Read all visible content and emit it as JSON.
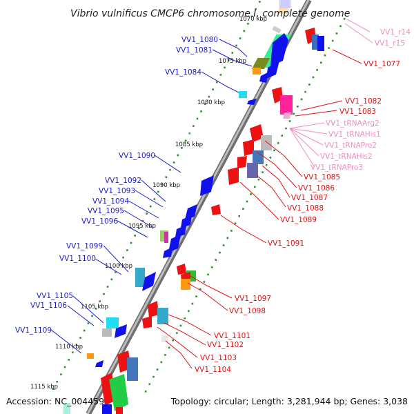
{
  "title": "Vibrio vulnificus CMCP6 chromosome I, complete genome",
  "footer": {
    "accession": "Accession: NC_004459",
    "topology": "Topology: circular; Length: 3,281,944 bp; Genes: 3,038"
  },
  "colors": {
    "forward_label": "#1a1acc",
    "reverse_label": "#dd1111",
    "rna_label": "#f08cc0",
    "backbone": "#8a8a8a",
    "tick": "#2f8f2f"
  },
  "scale": {
    "kbp_labels": [
      "1070 kbp",
      "1075 kbp",
      "1080 kbp",
      "1085 kbp",
      "1090 kbp",
      "1095 kbp",
      "1100 kbp",
      "1105 kbp",
      "1110 kbp",
      "1115 kbp"
    ]
  },
  "forward_genes": [
    {
      "name": "VV1_1080",
      "label": "VV1_1080",
      "icon": "gene-arrow"
    },
    {
      "name": "VV1_1081",
      "label": "VV1_1081",
      "icon": "gene-arrow"
    },
    {
      "name": "VV1_1084",
      "label": "VV1_1084",
      "icon": "gene-arrow"
    },
    {
      "name": "VV1_1090",
      "label": "VV1_1090",
      "icon": "gene-arrow"
    },
    {
      "name": "VV1_1092",
      "label": "VV1_1092",
      "icon": "gene-arrow"
    },
    {
      "name": "VV1_1093",
      "label": "VV1_1093",
      "icon": "gene-arrow"
    },
    {
      "name": "VV1_1094",
      "label": "VV1_1094",
      "icon": "gene-arrow"
    },
    {
      "name": "VV1_1095",
      "label": "VV1_1095",
      "icon": "gene-arrow"
    },
    {
      "name": "VV1_1096",
      "label": "VV1_1096",
      "icon": "gene-arrow"
    },
    {
      "name": "VV1_1099",
      "label": "VV1_1099",
      "icon": "gene-arrow"
    },
    {
      "name": "VV1_1100",
      "label": "VV1_1100",
      "icon": "gene-arrow"
    },
    {
      "name": "VV1_1105",
      "label": "VV1_1105",
      "icon": "gene-arrow"
    },
    {
      "name": "VV1_1106",
      "label": "VV1_1106",
      "icon": "gene-arrow"
    },
    {
      "name": "VV1_1109",
      "label": "VV1_1109",
      "icon": "gene-arrow"
    }
  ],
  "reverse_genes": [
    {
      "name": "VV1_r14",
      "label": "VV1_r14",
      "kind": "rna"
    },
    {
      "name": "VV1_r15",
      "label": "VV1_r15",
      "kind": "rna"
    },
    {
      "name": "VV1_1077",
      "label": "VV1_1077",
      "kind": "cds"
    },
    {
      "name": "VV1_1082",
      "label": "VV1_1082",
      "kind": "cds"
    },
    {
      "name": "VV1_1083",
      "label": "VV1_1083",
      "kind": "cds"
    },
    {
      "name": "VV1_tRNAArg2",
      "label": "VV1_tRNAArg2",
      "kind": "rna"
    },
    {
      "name": "VV1_tRNAHis1",
      "label": "VV1_tRNAHis1",
      "kind": "rna"
    },
    {
      "name": "VV1_tRNAPro2",
      "label": "VV1_tRNAPro2",
      "kind": "rna"
    },
    {
      "name": "VV1_tRNAHis2",
      "label": "VV1_tRNAHis2",
      "kind": "rna"
    },
    {
      "name": "VV1_tRNAPro3",
      "label": "VV1_tRNAPro3",
      "kind": "rna"
    },
    {
      "name": "VV1_1085",
      "label": "VV1_1085",
      "kind": "cds"
    },
    {
      "name": "VV1_1086",
      "label": "VV1_1086",
      "kind": "cds"
    },
    {
      "name": "VV1_1087",
      "label": "VV1_1087",
      "kind": "cds"
    },
    {
      "name": "VV1_1088",
      "label": "VV1_1088",
      "kind": "cds"
    },
    {
      "name": "VV1_1089",
      "label": "VV1_1089",
      "kind": "cds"
    },
    {
      "name": "VV1_1091",
      "label": "VV1_1091",
      "kind": "cds"
    },
    {
      "name": "VV1_1097",
      "label": "VV1_1097",
      "kind": "cds"
    },
    {
      "name": "VV1_1098",
      "label": "VV1_1098",
      "kind": "cds"
    },
    {
      "name": "VV1_1101",
      "label": "VV1_1101",
      "kind": "cds"
    },
    {
      "name": "VV1_1102",
      "label": "VV1_1102",
      "kind": "cds"
    },
    {
      "name": "VV1_1103",
      "label": "VV1_1103",
      "kind": "cds"
    },
    {
      "name": "VV1_1104",
      "label": "VV1_1104",
      "kind": "cds"
    }
  ]
}
